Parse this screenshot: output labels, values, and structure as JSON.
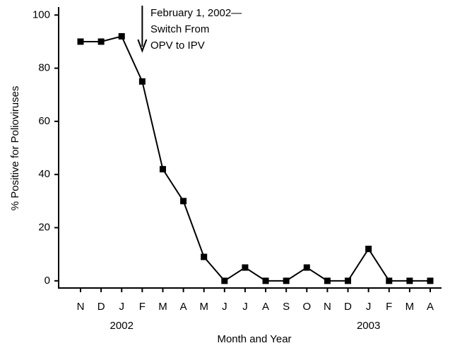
{
  "chart_data": {
    "type": "line",
    "y_label": "% Positive for Polioviruses",
    "x_label": "Month and Year",
    "categories": [
      "N",
      "D",
      "J",
      "F",
      "M",
      "A",
      "M",
      "J",
      "J",
      "A",
      "S",
      "O",
      "N",
      "D",
      "J",
      "F",
      "M",
      "A"
    ],
    "year_labels": [
      "2002",
      "2003"
    ],
    "annotation": [
      "February 1, 2002—",
      "Switch From",
      "OPV to IPV"
    ],
    "series": [
      {
        "name": "% Positive",
        "color": "#000000",
        "values": [
          90,
          90,
          92,
          75,
          42,
          30,
          9,
          0,
          5,
          0,
          0,
          5,
          0,
          0,
          12,
          0,
          0,
          0
        ]
      }
    ],
    "ylim": [
      -2.7,
      103
    ],
    "yticks": [
      0,
      20,
      40,
      60,
      80,
      100
    ]
  }
}
